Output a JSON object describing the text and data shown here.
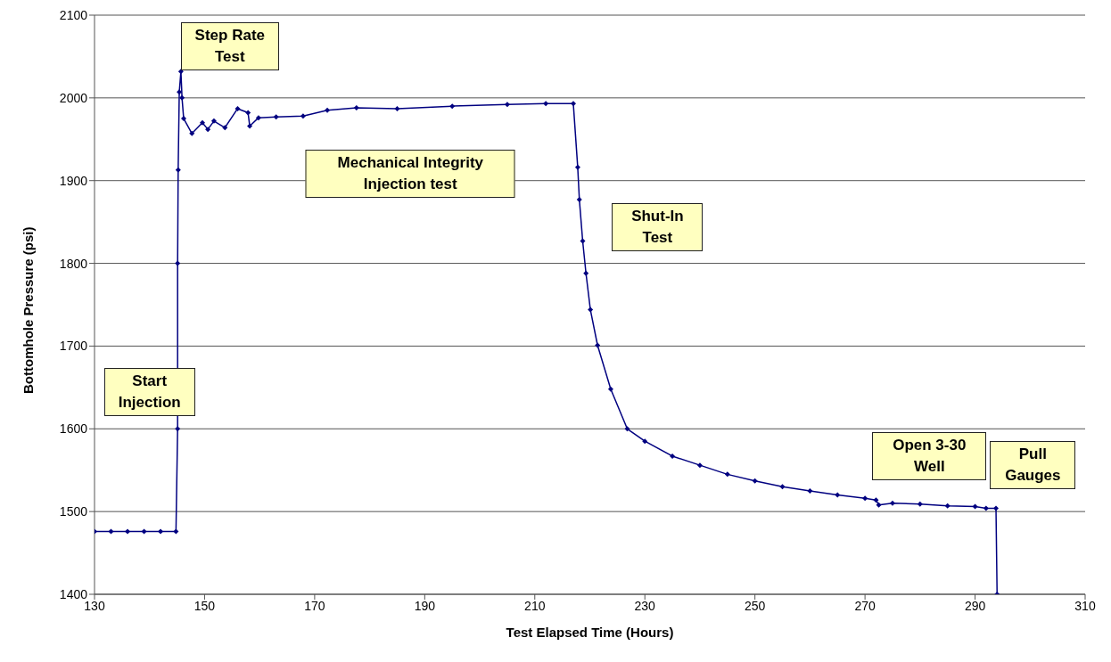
{
  "chart_data": {
    "type": "line",
    "xlabel": "Test Elapsed Time (Hours)",
    "ylabel": "Bottomhole Pressure (psi)",
    "xlim": [
      130,
      310
    ],
    "xticks": [
      130,
      150,
      170,
      190,
      210,
      230,
      250,
      270,
      290,
      310
    ],
    "ylim": [
      1400,
      2100
    ],
    "yticks": [
      1400,
      1500,
      1600,
      1700,
      1800,
      1900,
      2000,
      2100
    ],
    "grid": "y",
    "marker": "diamond",
    "line_style": "solid",
    "series": [
      {
        "color": "#000080",
        "x": [
          130,
          133,
          136,
          139,
          142,
          144.8,
          145.1,
          145.1,
          145.2,
          145.4,
          145.7,
          145.9,
          146.2,
          147.7,
          149.6,
          150.6,
          151.7,
          153.7,
          156,
          157.9,
          158.2,
          159.8,
          163,
          167.9,
          172.3,
          177.6,
          185,
          195,
          205,
          212,
          217,
          217.8,
          218.1,
          218.7,
          219.3,
          220.1,
          221.4,
          223.8,
          226.8,
          230,
          235,
          240,
          245,
          250,
          255,
          260,
          265,
          270,
          272,
          272.5,
          275,
          280,
          285,
          290,
          292,
          293.8,
          294
        ],
        "values": [
          1476,
          1476,
          1476,
          1476,
          1476,
          1476,
          1600,
          1800,
          1913,
          2007,
          2032,
          2000,
          1975,
          1957,
          1970,
          1962,
          1972,
          1964,
          1987,
          1982,
          1966,
          1976,
          1977,
          1978,
          1985,
          1988,
          1987,
          1990,
          1992,
          1993,
          1993,
          1916,
          1877,
          1827,
          1788,
          1744,
          1701,
          1648,
          1600,
          1585,
          1567,
          1556,
          1545,
          1537,
          1530,
          1525,
          1520,
          1516,
          1514,
          1508,
          1510,
          1509,
          1507,
          1506,
          1504,
          1504,
          1400
        ]
      }
    ],
    "annotations": [
      "Start Injection",
      "Step Rate Test",
      "Mechanical Integrity Injection test",
      "Shut-In Test",
      "Open 3-30 Well",
      "Pull Gauges"
    ]
  }
}
